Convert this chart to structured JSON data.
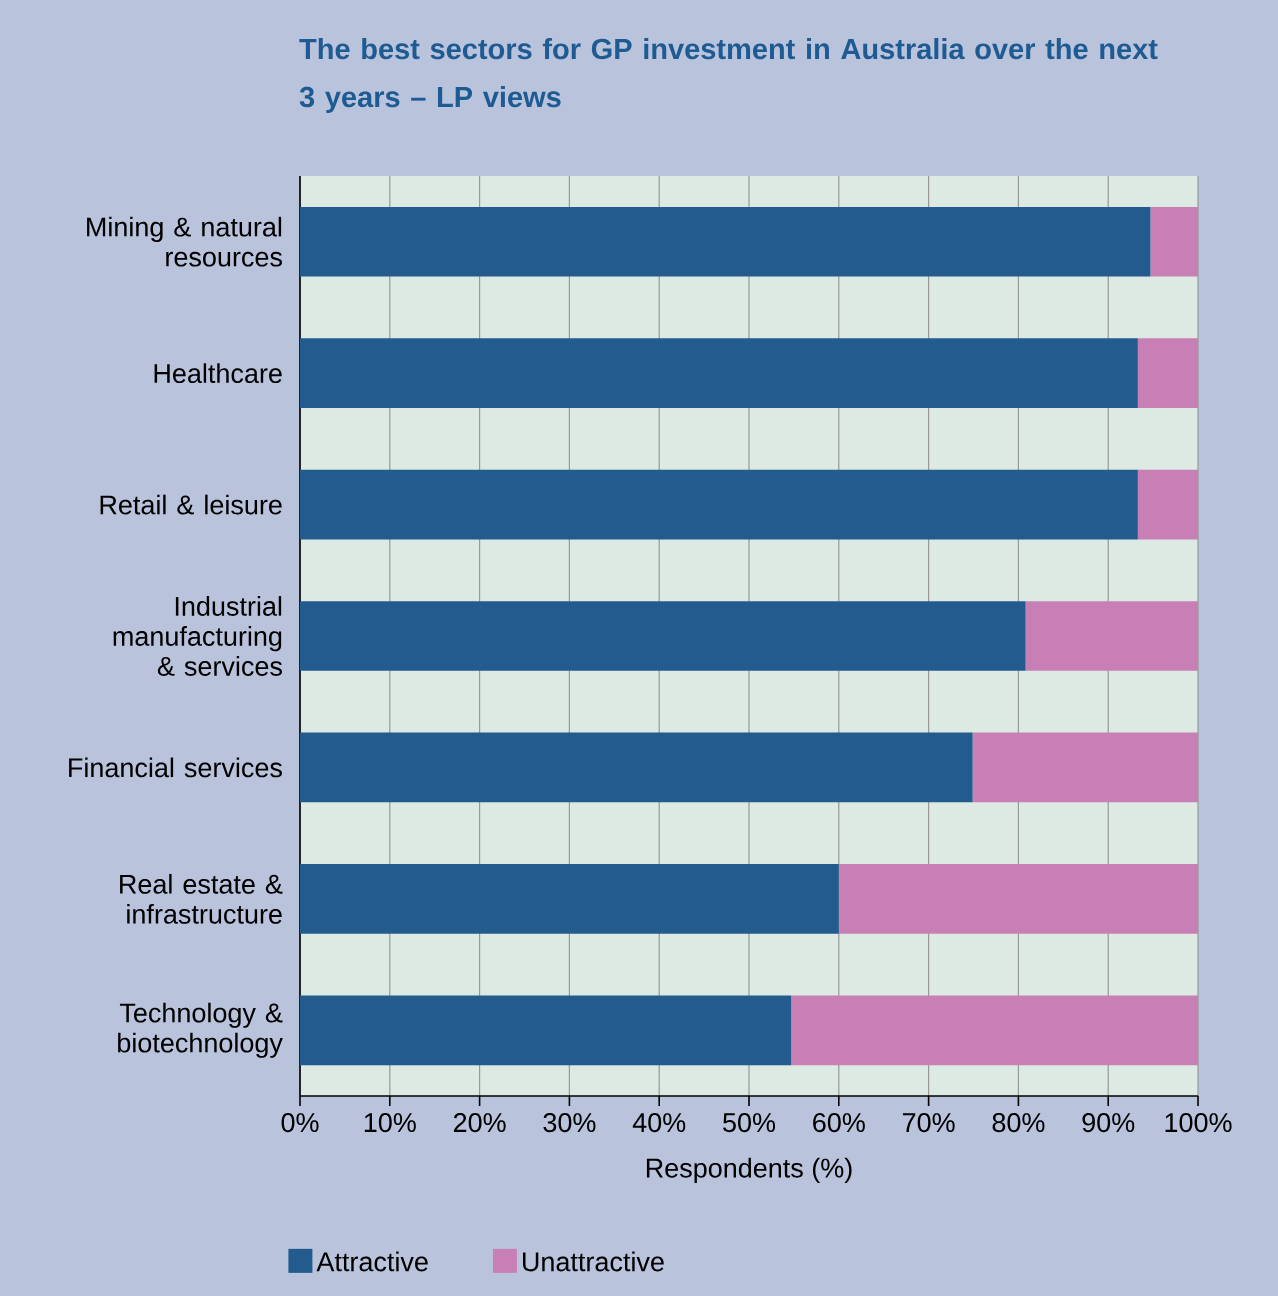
{
  "chart_data": {
    "type": "bar",
    "orientation": "horizontal",
    "stacked": true,
    "title": "The best sectors for GP investment in Australia over the next 3 years – LP views",
    "xlabel": "Respondents (%)",
    "categories": [
      "Mining & natural resources",
      "Healthcare",
      "Retail & leisure",
      "Industrial manufacturing & services",
      "Financial services",
      "Real estate & infrastructure",
      "Technology & biotechnology"
    ],
    "series": [
      {
        "name": "Attractive",
        "color": "#235b8e",
        "values": [
          94.7,
          93.3,
          93.3,
          80.8,
          74.9,
          60,
          54.7
        ]
      },
      {
        "name": "Unattractive",
        "color": "#c87fb5",
        "values": [
          5.3,
          6.7,
          6.7,
          19.2,
          25.1,
          40,
          45.3
        ]
      }
    ],
    "xlim": [
      0,
      100
    ],
    "xticks": [
      {
        "value": 0,
        "label": "0%"
      },
      {
        "value": 10,
        "label": "10%"
      },
      {
        "value": 20,
        "label": "20%"
      },
      {
        "value": 30,
        "label": "30%"
      },
      {
        "value": 40,
        "label": "40%"
      },
      {
        "value": 50,
        "label": "50%"
      },
      {
        "value": 60,
        "label": "60%"
      },
      {
        "value": 70,
        "label": "70%"
      },
      {
        "value": 80,
        "label": "80%"
      },
      {
        "value": 90,
        "label": "90%"
      },
      {
        "value": 100,
        "label": "100%"
      }
    ],
    "grid": "x",
    "legend": "bottom left"
  }
}
